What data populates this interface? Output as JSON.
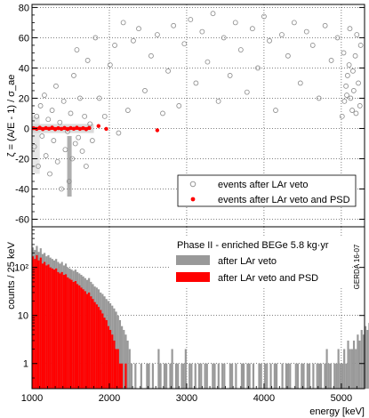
{
  "chart_data": [
    {
      "type": "scatter",
      "panel": "top",
      "ylabel": "ζ = (A/E - 1) / σ_ae",
      "ylim": [
        -65,
        82
      ],
      "xlim": [
        1000,
        5300
      ],
      "yticks": [
        "80",
        "60",
        "40",
        "20",
        "0",
        "-20",
        "-40",
        "-60"
      ],
      "ytick_values": [
        80,
        60,
        40,
        20,
        0,
        -20,
        -40,
        -60
      ],
      "xgrid_values": [
        2000,
        3000,
        4000,
        5000
      ],
      "grid": true,
      "legend_position": "bottom-right",
      "series": [
        {
          "name": "events after LAr veto",
          "marker": "open-circle",
          "color": "#8c8c8c",
          "points": [
            [
              1030,
              -12
            ],
            [
              1060,
              8
            ],
            [
              1080,
              -25
            ],
            [
              1110,
              15
            ],
            [
              1130,
              -5
            ],
            [
              1160,
              22
            ],
            [
              1180,
              -18
            ],
            [
              1210,
              6
            ],
            [
              1230,
              -30
            ],
            [
              1260,
              12
            ],
            [
              1280,
              -8
            ],
            [
              1310,
              28
            ],
            [
              1330,
              -22
            ],
            [
              1360,
              4
            ],
            [
              1380,
              -40
            ],
            [
              1410,
              18
            ],
            [
              1430,
              -14
            ],
            [
              1460,
              -2
            ],
            [
              1480,
              -35
            ],
            [
              1500,
              10
            ],
            [
              1520,
              -20
            ],
            [
              1540,
              35
            ],
            [
              1560,
              -10
            ],
            [
              1580,
              52
            ],
            [
              1600,
              -6
            ],
            [
              1620,
              20
            ],
            [
              1650,
              -15
            ],
            [
              1680,
              8
            ],
            [
              1700,
              -25
            ],
            [
              1720,
              45
            ],
            [
              1750,
              3
            ],
            [
              1780,
              -8
            ],
            [
              1820,
              60
            ],
            [
              1870,
              20
            ],
            [
              1940,
              8
            ],
            [
              2010,
              42
            ],
            [
              2070,
              55
            ],
            [
              2120,
              -3
            ],
            [
              2180,
              70
            ],
            [
              2240,
              12
            ],
            [
              2310,
              58
            ],
            [
              2380,
              66
            ],
            [
              2460,
              25
            ],
            [
              2540,
              48
            ],
            [
              2620,
              62
            ],
            [
              2690,
              10
            ],
            [
              2760,
              38
            ],
            [
              2830,
              68
            ],
            [
              2900,
              15
            ],
            [
              2970,
              56
            ],
            [
              3050,
              72
            ],
            [
              3120,
              30
            ],
            [
              3200,
              64
            ],
            [
              3270,
              44
            ],
            [
              3340,
              76
            ],
            [
              3410,
              18
            ],
            [
              3480,
              60
            ],
            [
              3560,
              35
            ],
            [
              3630,
              70
            ],
            [
              3700,
              52
            ],
            [
              3780,
              24
            ],
            [
              3850,
              66
            ],
            [
              3920,
              40
            ],
            [
              4000,
              74
            ],
            [
              4070,
              58
            ],
            [
              4150,
              12
            ],
            [
              4230,
              62
            ],
            [
              4310,
              48
            ],
            [
              4390,
              70
            ],
            [
              4470,
              30
            ],
            [
              4550,
              64
            ],
            [
              4630,
              55
            ],
            [
              4710,
              20
            ],
            [
              4790,
              68
            ],
            [
              4870,
              45
            ],
            [
              4950,
              60
            ],
            [
              5010,
              8
            ],
            [
              5040,
              18
            ],
            [
              5060,
              28
            ],
            [
              5080,
              35
            ],
            [
              5100,
              42
            ],
            [
              5120,
              20
            ],
            [
              5140,
              12
            ],
            [
              5160,
              25
            ],
            [
              5180,
              48
            ],
            [
              5200,
              62
            ],
            [
              5220,
              30
            ],
            [
              5240,
              15
            ],
            [
              5250,
              55
            ],
            [
              5030,
              50
            ],
            [
              5150,
              38
            ],
            [
              5070,
              22
            ],
            [
              5190,
              10
            ],
            [
              5110,
              66
            ]
          ]
        },
        {
          "name": "events after LAr veto and PSD",
          "marker": "filled-circle",
          "color": "#ff0000",
          "points": [
            [
              1020,
              0.2
            ],
            [
              1060,
              -0.3
            ],
            [
              1100,
              0.5
            ],
            [
              1140,
              -0.4
            ],
            [
              1180,
              0.3
            ],
            [
              1220,
              -0.2
            ],
            [
              1260,
              0.6
            ],
            [
              1300,
              -0.5
            ],
            [
              1340,
              0.2
            ],
            [
              1380,
              -0.3
            ],
            [
              1420,
              0.4
            ],
            [
              1460,
              -0.4
            ],
            [
              1500,
              0.3
            ],
            [
              1540,
              -0.2
            ],
            [
              1580,
              0.5
            ],
            [
              1620,
              -0.3
            ],
            [
              1660,
              0.2
            ],
            [
              1700,
              -0.5
            ],
            [
              1740,
              0.4
            ],
            [
              1860,
              1.6
            ],
            [
              1960,
              -0.3
            ],
            [
              2620,
              -1.2
            ]
          ]
        }
      ]
    },
    {
      "type": "bar",
      "panel": "bottom",
      "title": "Phase II - enriched BEGe 5.8 kg·yr",
      "xlabel": "energy [keV]",
      "ylabel": "counts / 25 keV",
      "xlim": [
        1000,
        5300
      ],
      "ylim": [
        0.3,
        700
      ],
      "yscale": "log",
      "bin_width": 25,
      "xticks": [
        "1000",
        "2000",
        "3000",
        "4000",
        "5000"
      ],
      "xtick_values": [
        1000,
        2000,
        3000,
        4000,
        5000
      ],
      "yticks": [
        "1",
        "10",
        "10²"
      ],
      "ytick_values": [
        1,
        10,
        100
      ],
      "grid": true,
      "legend_position": "top-right",
      "series": [
        {
          "name": "after LAr veto",
          "color": "#999999",
          "values": [
            260,
            230,
            280,
            210,
            250,
            190,
            200,
            170,
            180,
            160,
            150,
            140,
            150,
            130,
            120,
            130,
            110,
            120,
            100,
            95,
            90,
            85,
            90,
            80,
            75,
            70,
            65,
            60,
            55,
            60,
            50,
            45,
            40,
            38,
            35,
            30,
            28,
            25,
            22,
            20,
            18,
            16,
            14,
            12,
            10,
            8,
            6,
            5,
            4,
            3,
            2,
            1,
            0,
            1,
            0,
            0,
            1,
            0,
            0,
            1,
            1,
            0,
            1,
            0,
            0,
            2,
            1,
            0,
            1,
            1,
            0,
            1,
            2,
            0,
            1,
            1,
            0,
            1,
            1,
            2,
            0,
            1,
            1,
            0,
            1,
            0,
            1,
            1,
            0,
            1,
            1,
            0,
            0,
            1,
            1,
            0,
            1,
            0,
            1,
            1,
            0,
            0,
            1,
            1,
            0,
            1,
            0,
            0,
            1,
            1,
            0,
            1,
            1,
            0,
            1,
            0,
            0,
            1,
            1,
            0,
            1,
            1,
            0,
            1,
            0,
            1,
            1,
            0,
            0,
            1,
            0,
            1,
            1,
            1,
            0,
            0,
            1,
            1,
            0,
            1,
            1,
            0,
            1,
            1,
            0,
            1,
            0,
            1,
            1,
            1,
            0,
            1,
            2,
            1,
            1,
            0,
            1,
            1,
            2,
            1,
            1,
            2,
            1,
            3,
            2,
            2,
            3,
            2,
            4,
            3,
            5,
            4,
            6,
            5,
            7,
            6,
            5,
            4,
            3,
            2,
            2,
            1
          ]
        },
        {
          "name": "after LAr veto and PSD",
          "color": "#ff0000",
          "values": [
            170,
            150,
            180,
            140,
            160,
            120,
            130,
            110,
            115,
            100,
            95,
            90,
            95,
            80,
            75,
            80,
            70,
            72,
            62,
            58,
            55,
            50,
            52,
            45,
            42,
            38,
            35,
            32,
            28,
            30,
            25,
            22,
            19,
            17,
            15,
            13,
            11,
            9,
            8,
            6,
            5,
            4,
            3,
            2,
            2,
            1,
            1,
            0,
            1,
            0,
            0,
            0,
            0,
            0,
            0,
            0,
            0,
            0,
            0,
            0,
            0,
            0,
            0,
            0,
            0,
            0,
            0,
            0,
            0,
            0,
            0,
            0,
            0,
            0,
            0,
            0,
            0,
            0,
            0,
            0,
            0,
            0,
            0,
            0,
            0,
            0,
            0,
            0,
            0,
            0,
            0,
            0,
            0,
            0,
            0,
            0,
            0,
            0,
            0,
            0,
            0,
            0,
            0,
            0,
            0,
            0,
            0,
            0,
            0,
            0,
            0,
            0,
            0,
            0,
            0,
            0,
            0,
            0,
            0,
            0,
            0,
            0,
            0,
            0,
            0,
            0,
            0,
            0,
            0,
            0,
            0,
            0,
            0,
            0,
            0,
            0,
            0,
            0,
            0,
            0,
            0,
            0,
            0,
            0,
            0,
            0,
            0,
            0,
            0,
            0,
            0,
            0,
            0,
            0,
            0,
            0,
            0,
            0,
            0,
            0,
            0,
            0,
            0,
            0,
            0,
            0,
            0,
            0,
            0,
            0,
            0,
            0,
            0,
            0,
            0,
            0,
            0,
            0,
            0,
            0,
            0,
            0
          ]
        }
      ]
    }
  ],
  "stamp": "GERDA 16-07"
}
